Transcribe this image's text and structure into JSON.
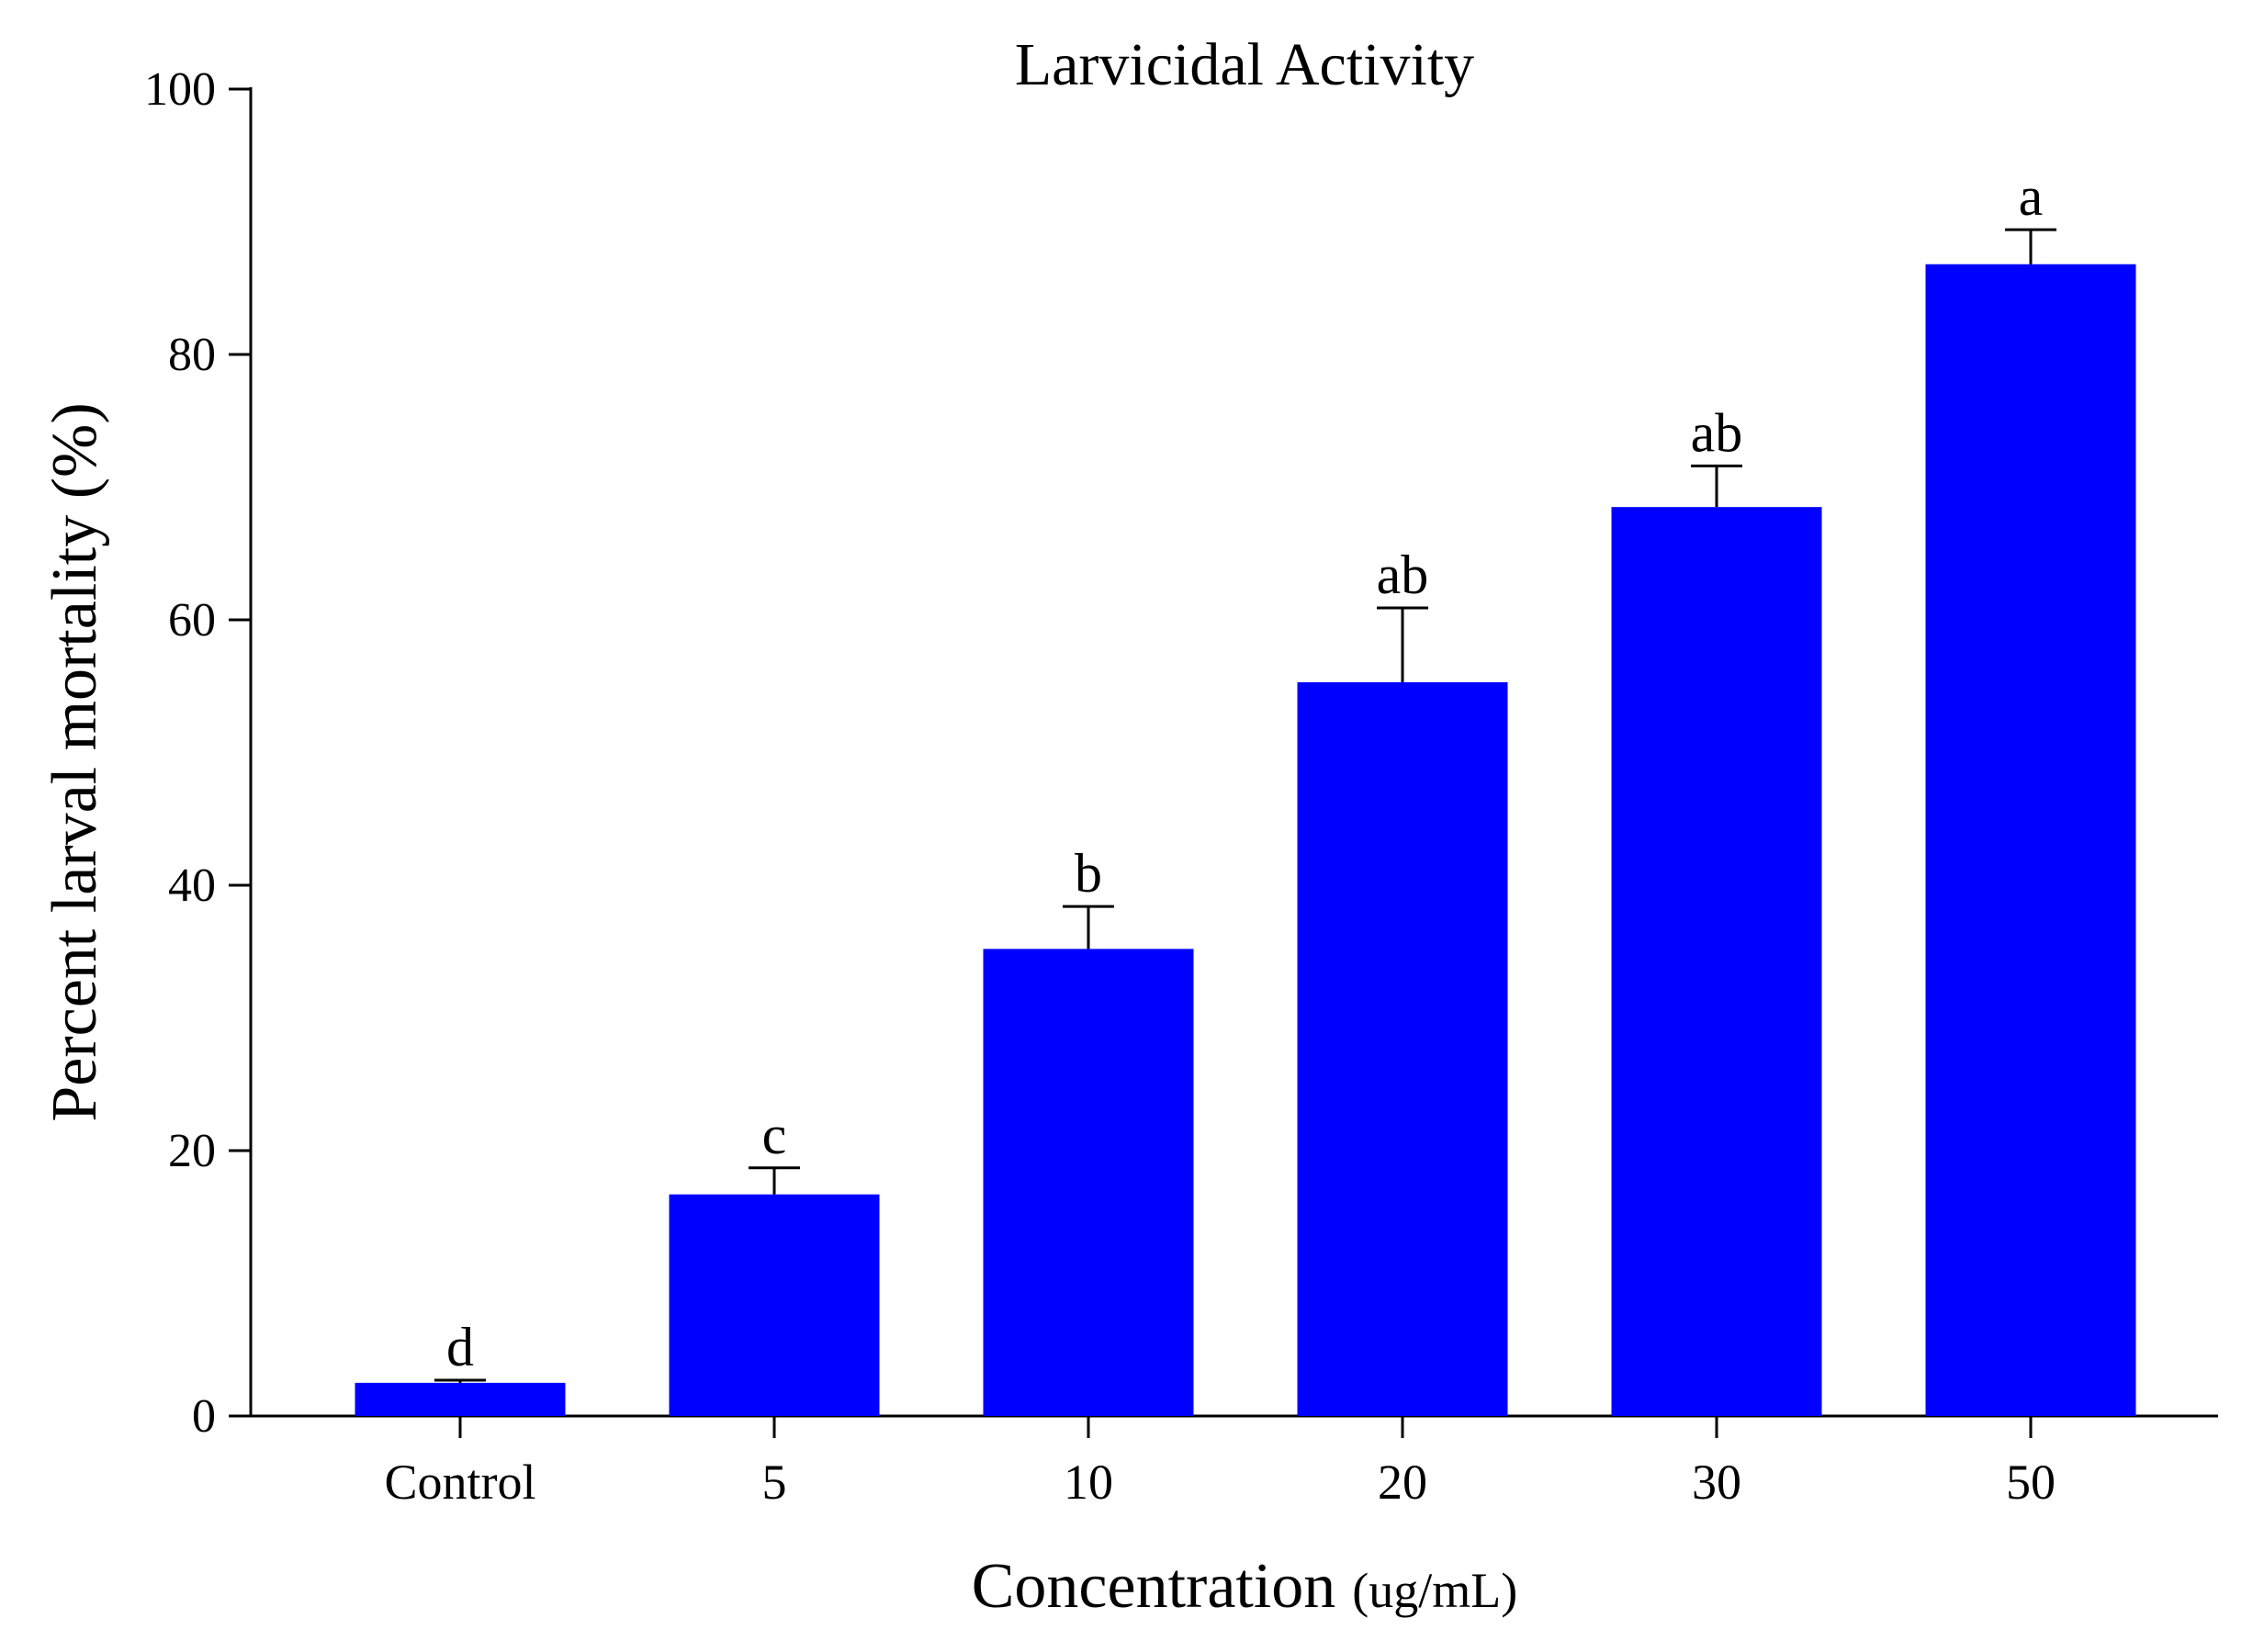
{
  "chart_data": {
    "type": "bar",
    "title": "Larvicidal Activity",
    "xlabel": "Concentration",
    "xlabel_unit": "(ug/mL)",
    "ylabel": "Percent larval mortality (%)",
    "ylim": [
      0,
      100
    ],
    "yticks": [
      "0",
      "20",
      "40",
      "60",
      "80",
      "100"
    ],
    "categories": [
      "Control",
      "5",
      "10",
      "20",
      "30",
      "50"
    ],
    "values": [
      2.5,
      16.7,
      35.2,
      55.3,
      68.5,
      86.8
    ],
    "errors": [
      0.2,
      2.0,
      3.2,
      5.6,
      3.1,
      2.6
    ],
    "significance": [
      "d",
      "c",
      "b",
      "ab",
      "ab",
      "a"
    ],
    "bar_color": "#0000ff",
    "grid": false,
    "legend": "none"
  }
}
